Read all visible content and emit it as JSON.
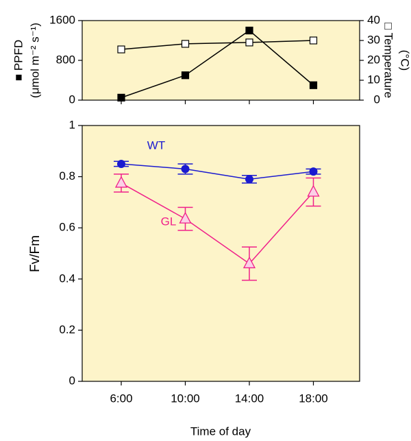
{
  "chart_data": [
    {
      "type": "line",
      "categories": [
        "6:00",
        "10:00",
        "14:00",
        "18:00"
      ],
      "y_label": "■ PPFD",
      "y_label_unit": "(μmol m⁻² s⁻¹)",
      "y2_label": "□ Temperature",
      "y2_label_unit": "(°C)",
      "ylim": [
        0,
        1600
      ],
      "yticks": [
        0,
        800,
        1600
      ],
      "y2lim": [
        0,
        40
      ],
      "y2ticks": [
        0,
        10,
        20,
        30,
        40
      ],
      "series": [
        {
          "name": "PPFD",
          "color": "#000000",
          "marker": "filled-square",
          "values": [
            50,
            500,
            1400,
            300
          ]
        },
        {
          "name": "Temperature",
          "color": "#000000",
          "marker": "open-square",
          "axis": "y2",
          "values": [
            25.5,
            28.3,
            29,
            30
          ]
        }
      ]
    },
    {
      "type": "line",
      "categories": [
        "6:00",
        "10:00",
        "14:00",
        "18:00"
      ],
      "x_label": "Time of day",
      "y_label": "Fv/Fm",
      "ylim": [
        0,
        1
      ],
      "yticks": [
        0,
        0.2,
        0.4,
        0.6,
        0.8,
        1
      ],
      "series": [
        {
          "name": "WT",
          "color": "#1a1ad0",
          "marker": "circle",
          "values": [
            0.85,
            0.83,
            0.79,
            0.82
          ],
          "errors": [
            0.01,
            0.02,
            0.015,
            0.01
          ]
        },
        {
          "name": "GL",
          "color": "#f0208a",
          "marker": "triangle",
          "values": [
            0.775,
            0.635,
            0.46,
            0.74
          ],
          "errors": [
            0.035,
            0.045,
            0.065,
            0.055
          ]
        }
      ]
    }
  ]
}
